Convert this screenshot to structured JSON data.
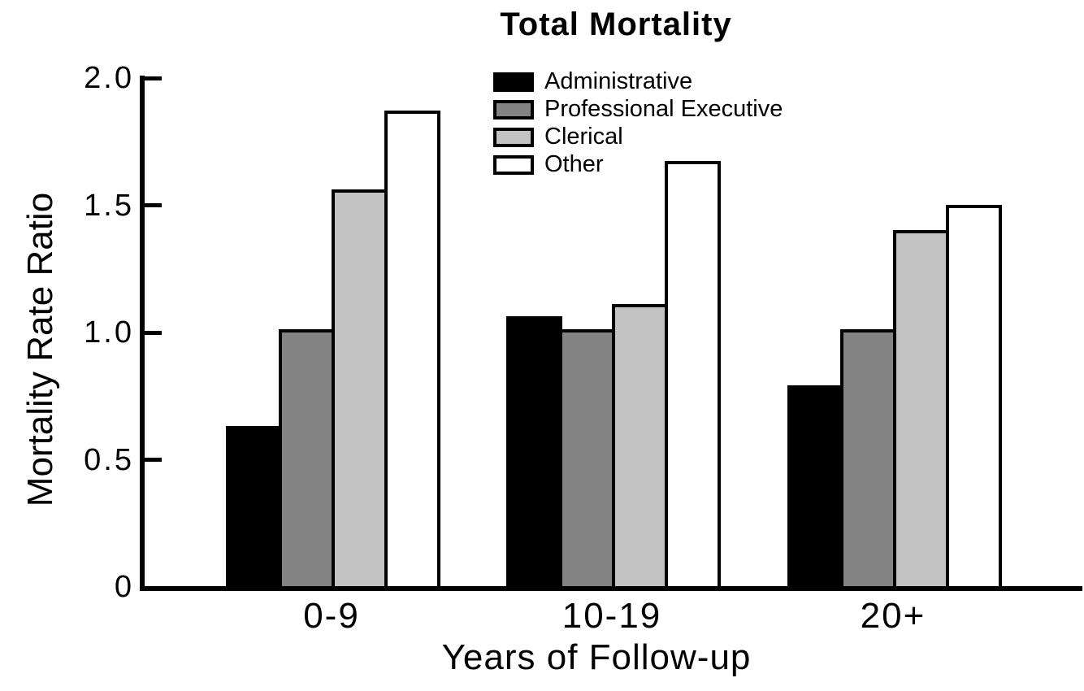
{
  "chart_data": {
    "type": "bar",
    "title": "Total Mortality",
    "xlabel": "Years of Follow-up",
    "ylabel": "Mortality Rate Ratio",
    "ylim": [
      0,
      2.0
    ],
    "yticks": [
      {
        "value": 0,
        "label": "0"
      },
      {
        "value": 0.5,
        "label": "0.5"
      },
      {
        "value": 1.0,
        "label": "1.0"
      },
      {
        "value": 1.5,
        "label": "1.5"
      },
      {
        "value": 2.0,
        "label": "2.0"
      }
    ],
    "grid": false,
    "legend_position": "upper center inside plot",
    "categories": [
      "0-9",
      "10-19",
      "20+"
    ],
    "series": [
      {
        "name": "Administrative",
        "color": "#000000",
        "values": [
          0.62,
          1.05,
          0.78
        ]
      },
      {
        "name": "Professional Executive",
        "color": "#848484",
        "values": [
          1.0,
          1.0,
          1.0
        ]
      },
      {
        "name": "Clerical",
        "color": "#c3c3c3",
        "values": [
          1.55,
          1.1,
          1.39
        ]
      },
      {
        "name": "Other",
        "color": "#ffffff",
        "values": [
          1.86,
          1.66,
          1.49
        ]
      }
    ],
    "bar_outline_color": "#000000",
    "axis_color": "#000000"
  }
}
